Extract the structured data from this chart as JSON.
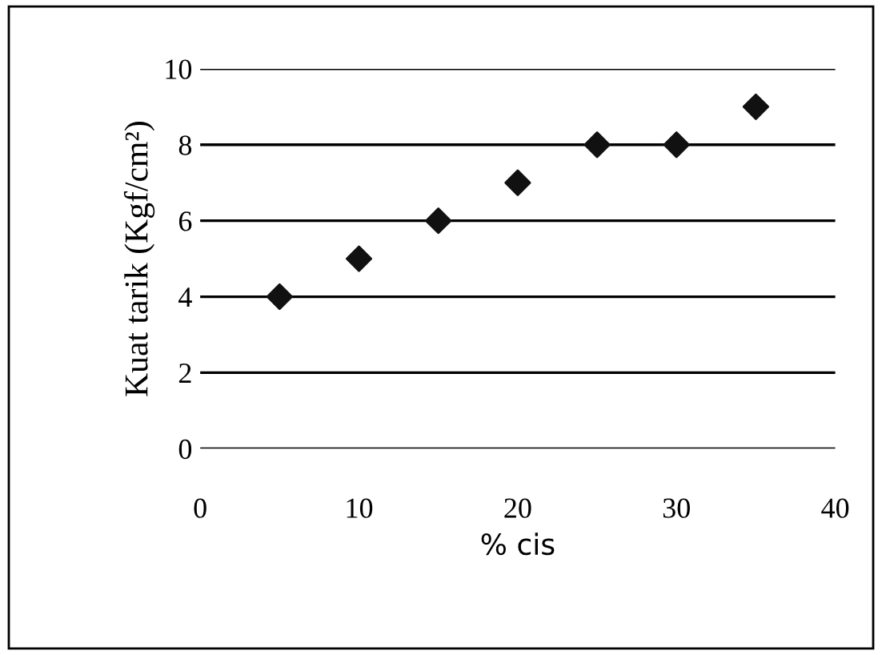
{
  "chart_data": {
    "type": "scatter",
    "xlabel": "% cis",
    "ylabel": "Kuat tarik (Kgf/cm²)",
    "x": [
      5,
      10,
      15,
      20,
      25,
      30,
      35
    ],
    "values": [
      4,
      5,
      6,
      7,
      8,
      8,
      9
    ],
    "color": "#111111",
    "marker": "diamond",
    "xlim": [
      0,
      40
    ],
    "xticks": [
      0,
      10,
      20,
      30,
      40
    ],
    "ylim": [
      0,
      10
    ],
    "yticks": [
      0,
      2,
      4,
      6,
      8,
      10
    ],
    "grid": "y",
    "legend": false
  }
}
